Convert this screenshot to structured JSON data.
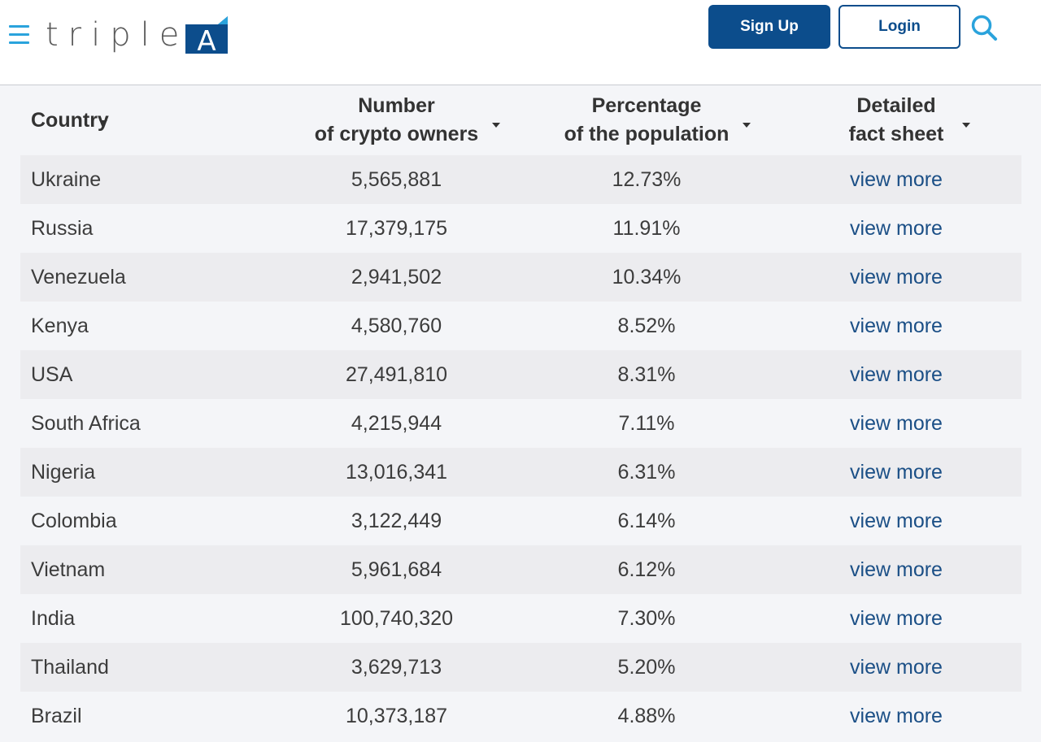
{
  "header": {
    "logo_text": "triple",
    "logo_mark_letter": "A",
    "signup_label": "Sign Up",
    "login_label": "Login",
    "icons": {
      "menu": "hamburger-menu-icon",
      "search": "search-icon"
    },
    "colors": {
      "brand_blue": "#0c4d8c",
      "accent_light_blue": "#2aa3dc"
    }
  },
  "table": {
    "columns": [
      {
        "line1": "Country",
        "line2": ""
      },
      {
        "line1": "Number",
        "line2": "of crypto owners"
      },
      {
        "line1": "Percentage",
        "line2": "of the population"
      },
      {
        "line1": "Detailed",
        "line2": "fact sheet"
      }
    ],
    "rows": [
      {
        "country": "Ukraine",
        "owners": "5,565,881",
        "percentage": "12.73%",
        "link": "view more"
      },
      {
        "country": "Russia",
        "owners": "17,379,175",
        "percentage": "11.91%",
        "link": "view more"
      },
      {
        "country": "Venezuela",
        "owners": "2,941,502",
        "percentage": "10.34%",
        "link": "view more"
      },
      {
        "country": "Kenya",
        "owners": "4,580,760",
        "percentage": "8.52%",
        "link": "view more"
      },
      {
        "country": "USA",
        "owners": "27,491,810",
        "percentage": "8.31%",
        "link": "view more"
      },
      {
        "country": "South Africa",
        "owners": "4,215,944",
        "percentage": "7.11%",
        "link": "view more"
      },
      {
        "country": "Nigeria",
        "owners": "13,016,341",
        "percentage": "6.31%",
        "link": "view more"
      },
      {
        "country": "Colombia",
        "owners": "3,122,449",
        "percentage": "6.14%",
        "link": "view more"
      },
      {
        "country": "Vietnam",
        "owners": "5,961,684",
        "percentage": "6.12%",
        "link": "view more"
      },
      {
        "country": "India",
        "owners": "100,740,320",
        "percentage": "7.30%",
        "link": "view more"
      },
      {
        "country": "Thailand",
        "owners": "3,629,713",
        "percentage": "5.20%",
        "link": "view more"
      },
      {
        "country": "Brazil",
        "owners": "10,373,187",
        "percentage": "4.88%",
        "link": "view more"
      }
    ]
  }
}
